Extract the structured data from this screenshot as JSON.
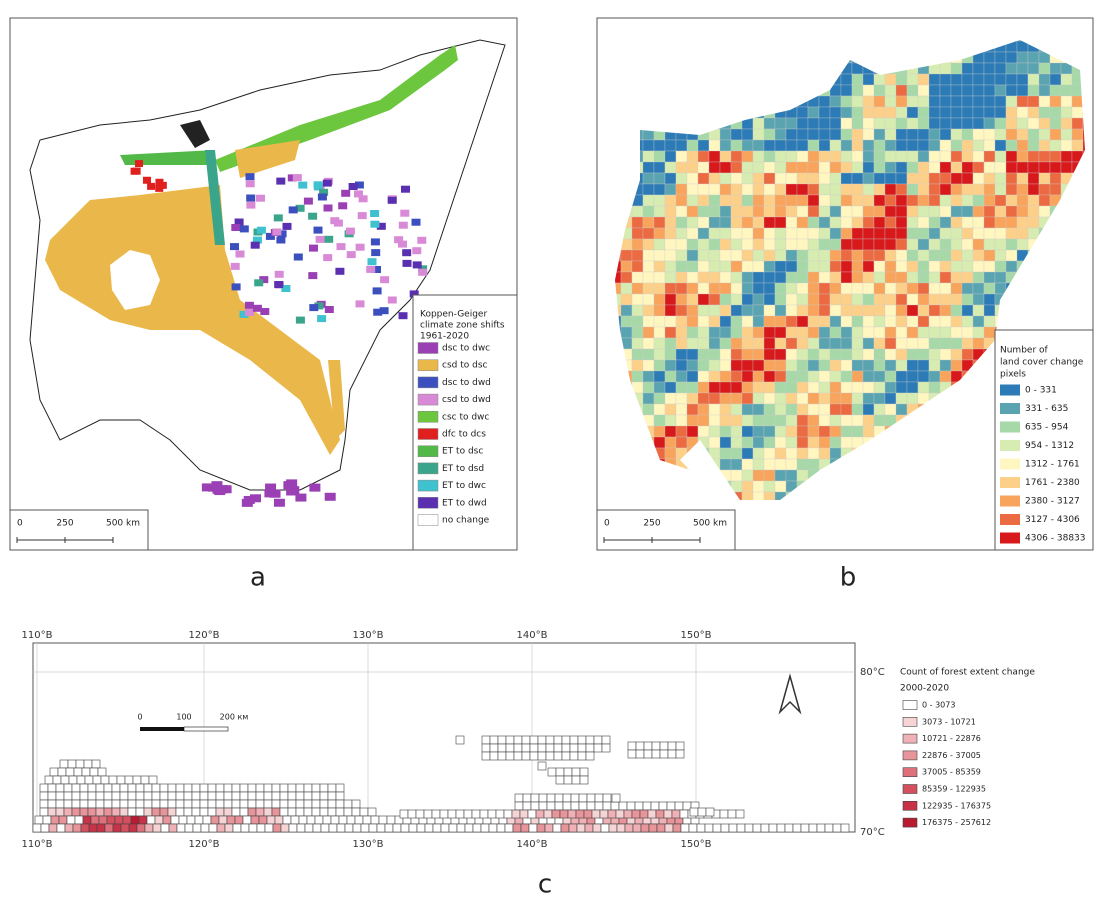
{
  "panels": {
    "a": {
      "label": "a",
      "legend": {
        "title": [
          "Koppen-Geiger",
          "climate zone shifts",
          "1961-2020"
        ],
        "items": [
          {
            "label": "dsc to dwc",
            "color": "#9b3fb5"
          },
          {
            "label": "csd to dsc",
            "color": "#eab84a"
          },
          {
            "label": "dsc to dwd",
            "color": "#3c4fbf"
          },
          {
            "label": "csd to dwd",
            "color": "#d98ad6"
          },
          {
            "label": "csc to dwc",
            "color": "#6cc63e"
          },
          {
            "label": "dfc to dcs",
            "color": "#e0201f"
          },
          {
            "label": "ET to dsc",
            "color": "#52b847"
          },
          {
            "label": "ET to dsd",
            "color": "#3aa58a"
          },
          {
            "label": "ET to dwc",
            "color": "#3fc1cf"
          },
          {
            "label": "ET to dwd",
            "color": "#5a2fb0"
          },
          {
            "label": "no change",
            "color": "#ffffff"
          }
        ]
      },
      "scale": [
        "0",
        "250",
        "500 km"
      ]
    },
    "b": {
      "label": "b",
      "legend": {
        "title": [
          "Number of",
          "land cover change",
          "pixels"
        ],
        "items": [
          {
            "label": "0 - 331",
            "color": "#2c7bb6"
          },
          {
            "label": "331 - 635",
            "color": "#5aa3b0"
          },
          {
            "label": "635 - 954",
            "color": "#a6d8a8"
          },
          {
            "label": "954 - 1312",
            "color": "#d6ecb0"
          },
          {
            "label": "1312 - 1761",
            "color": "#fff6c0"
          },
          {
            "label": "1761 - 2380",
            "color": "#fdd08a"
          },
          {
            "label": "2380 - 3127",
            "color": "#f9a45c"
          },
          {
            "label": "3127 - 4306",
            "color": "#ec6a42"
          },
          {
            "label": "4306 - 38833",
            "color": "#d7191c"
          }
        ]
      },
      "scale": [
        "0",
        "250",
        "500 km"
      ]
    },
    "c": {
      "label": "c",
      "lon_labels_top": [
        "110°В",
        "120°В",
        "130°В",
        "140°В",
        "150°В"
      ],
      "lon_labels_bottom": [
        "110°В",
        "120°В",
        "130°В",
        "140°В",
        "150°В"
      ],
      "lat_labels": [
        "80°С",
        "70°С"
      ],
      "legend": {
        "title": [
          "Count of forest extent change",
          "2000-2020"
        ],
        "items": [
          {
            "label": "0 - 3073",
            "color": "#ffffff"
          },
          {
            "label": "3073 - 10721",
            "color": "#f6d4d6"
          },
          {
            "label": "10721 - 22876",
            "color": "#efb1b5"
          },
          {
            "label": "22876 - 37005",
            "color": "#e7949a"
          },
          {
            "label": "37005 - 85359",
            "color": "#de707b"
          },
          {
            "label": "85359 - 122935",
            "color": "#d4505f"
          },
          {
            "label": "122935 - 176375",
            "color": "#c73247"
          },
          {
            "label": "176375 - 257612",
            "color": "#b81a30"
          }
        ]
      },
      "scale": [
        "0",
        "100",
        "200 км"
      ]
    }
  }
}
